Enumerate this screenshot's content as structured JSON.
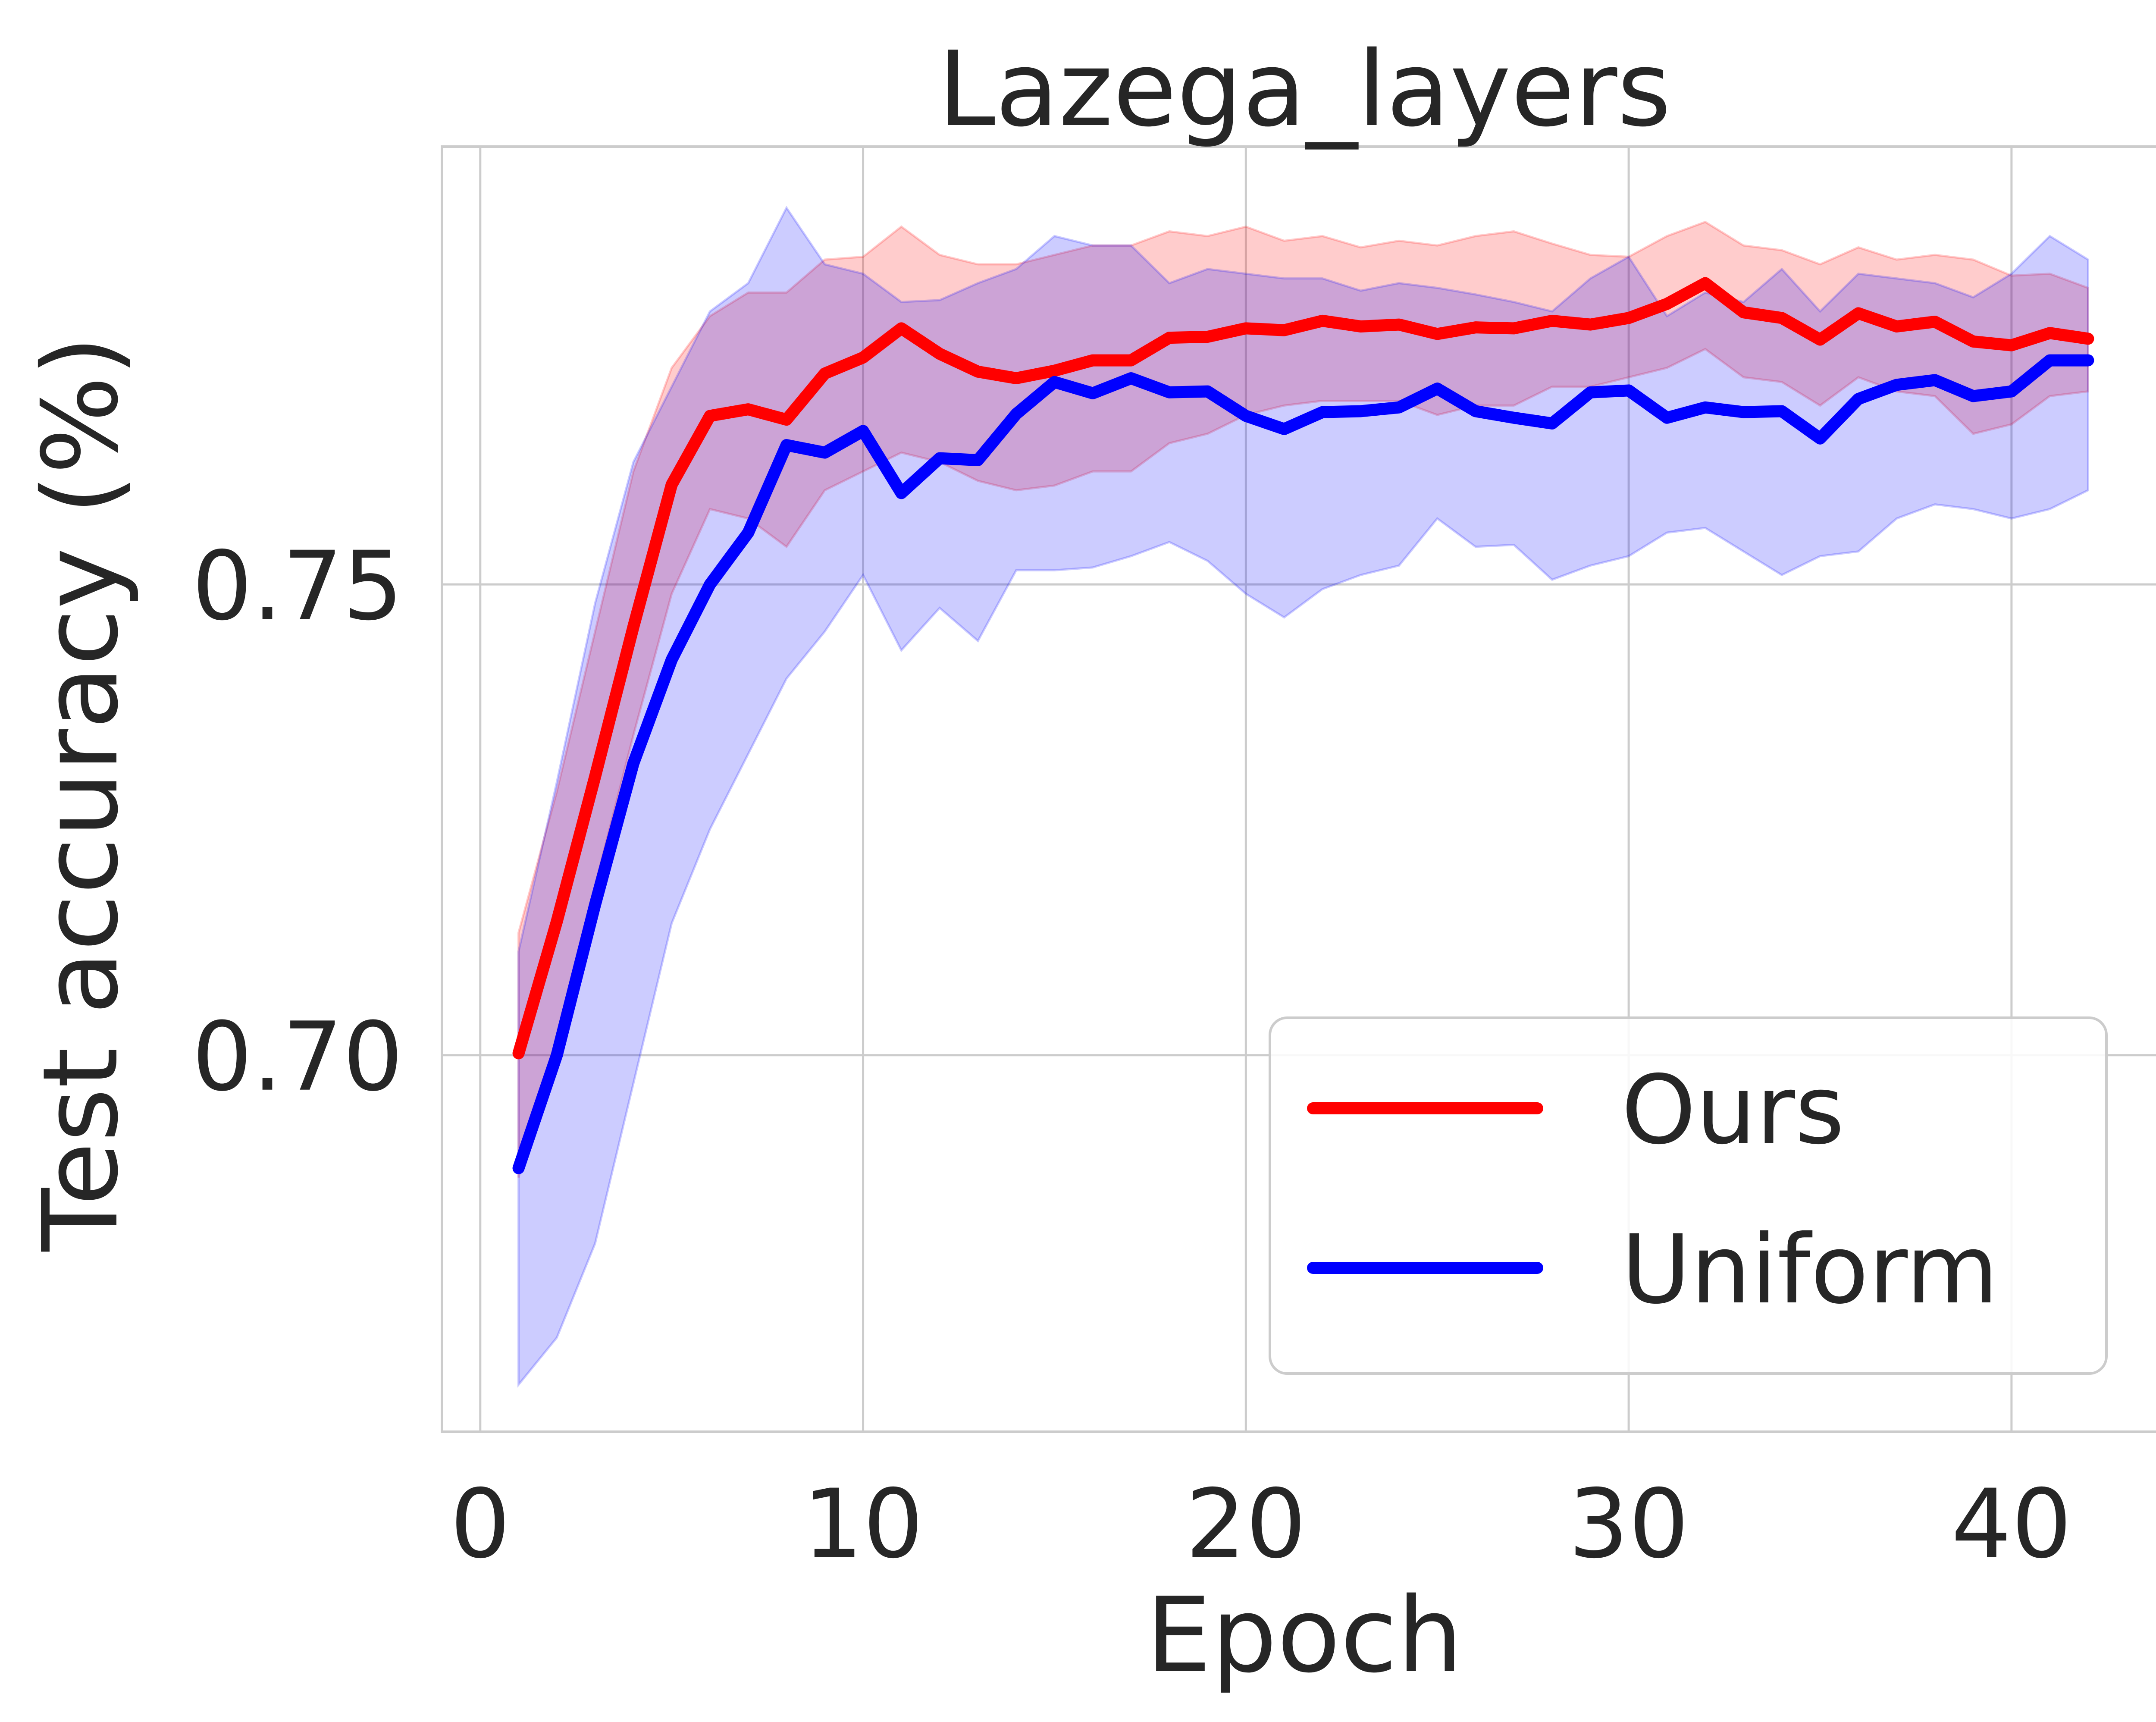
{
  "chart_data": {
    "type": "line",
    "title": "Lazega_layers",
    "xlabel": "Epoch",
    "ylabel": "Test accuracy (%)",
    "xlim": [
      -1,
      44
    ],
    "ylim": [
      0.66,
      0.7965
    ],
    "xticks": [
      0,
      10,
      20,
      30,
      40
    ],
    "xtick_labels": [
      "0",
      "10",
      "20",
      "30",
      "40"
    ],
    "yticks": [
      0.7,
      0.75
    ],
    "ytick_labels": [
      "0.70",
      "0.75"
    ],
    "grid": true,
    "legend_position": "lower-right",
    "x": [
      1,
      2,
      3,
      4,
      5,
      6,
      7,
      8,
      9,
      10,
      11,
      12,
      13,
      14,
      15,
      16,
      17,
      18,
      19,
      20,
      21,
      22,
      23,
      24,
      25,
      26,
      27,
      28,
      29,
      30,
      31,
      32,
      33,
      34,
      35,
      36,
      37,
      38,
      39,
      40,
      41,
      42
    ],
    "series": [
      {
        "name": "Ours",
        "color": "#ff0000",
        "band_color": "#ff0000",
        "values": [
          0.7002,
          0.7142,
          0.7296,
          0.7455,
          0.7606,
          0.7679,
          0.7686,
          0.7675,
          0.7724,
          0.7741,
          0.7772,
          0.7745,
          0.7726,
          0.7719,
          0.7727,
          0.7738,
          0.7738,
          0.7762,
          0.7763,
          0.7772,
          0.777,
          0.778,
          0.7774,
          0.7776,
          0.7766,
          0.7773,
          0.7772,
          0.778,
          0.7776,
          0.7783,
          0.7798,
          0.782,
          0.7789,
          0.7783,
          0.776,
          0.7788,
          0.7774,
          0.7779,
          0.7758,
          0.7754,
          0.7767,
          0.7761
        ],
        "lower": [
          0.687,
          0.702,
          0.718,
          0.734,
          0.749,
          0.758,
          0.757,
          0.754,
          0.76,
          0.762,
          0.764,
          0.763,
          0.761,
          0.76,
          0.7605,
          0.762,
          0.762,
          0.765,
          0.766,
          0.768,
          0.769,
          0.7695,
          0.7695,
          0.7695,
          0.768,
          0.769,
          0.769,
          0.771,
          0.771,
          0.772,
          0.773,
          0.775,
          0.772,
          0.7715,
          0.769,
          0.772,
          0.7705,
          0.77,
          0.766,
          0.767,
          0.77,
          0.7705
        ],
        "upper": [
          0.713,
          0.728,
          0.745,
          0.762,
          0.773,
          0.7785,
          0.781,
          0.781,
          0.7845,
          0.7848,
          0.788,
          0.785,
          0.784,
          0.784,
          0.785,
          0.786,
          0.786,
          0.7875,
          0.787,
          0.788,
          0.7865,
          0.787,
          0.7858,
          0.7865,
          0.786,
          0.787,
          0.7875,
          0.7862,
          0.785,
          0.7848,
          0.787,
          0.7885,
          0.786,
          0.7855,
          0.784,
          0.7858,
          0.7845,
          0.785,
          0.7845,
          0.7828,
          0.783,
          0.7815
        ]
      },
      {
        "name": "Uniform",
        "color": "#0000ff",
        "band_color": "#0000ff",
        "values": [
          0.688,
          0.7,
          0.716,
          0.731,
          0.742,
          0.75,
          0.7555,
          0.7648,
          0.764,
          0.7663,
          0.7597,
          0.7634,
          0.7632,
          0.7681,
          0.7715,
          0.7703,
          0.7719,
          0.7704,
          0.7705,
          0.7679,
          0.7665,
          0.7683,
          0.7684,
          0.7688,
          0.7708,
          0.7684,
          0.7677,
          0.7671,
          0.7704,
          0.7706,
          0.7677,
          0.7688,
          0.7683,
          0.7684,
          0.7655,
          0.7697,
          0.7712,
          0.7717,
          0.77,
          0.7705,
          0.7738,
          0.7738
        ],
        "lower": [
          0.665,
          0.67,
          0.68,
          0.697,
          0.714,
          0.724,
          0.732,
          0.74,
          0.745,
          0.751,
          0.743,
          0.7475,
          0.744,
          0.7515,
          0.7515,
          0.7518,
          0.753,
          0.7545,
          0.7525,
          0.749,
          0.7465,
          0.7495,
          0.751,
          0.752,
          0.757,
          0.754,
          0.7542,
          0.7505,
          0.752,
          0.753,
          0.7555,
          0.756,
          0.7535,
          0.751,
          0.753,
          0.7535,
          0.757,
          0.7585,
          0.758,
          0.757,
          0.758,
          0.76
        ],
        "upper": [
          0.711,
          0.729,
          0.748,
          0.763,
          0.771,
          0.779,
          0.782,
          0.79,
          0.784,
          0.783,
          0.78,
          0.7802,
          0.782,
          0.7835,
          0.787,
          0.786,
          0.786,
          0.782,
          0.7835,
          0.783,
          0.7825,
          0.7825,
          0.7812,
          0.782,
          0.7815,
          0.7808,
          0.78,
          0.779,
          0.7825,
          0.7848,
          0.7785,
          0.781,
          0.78,
          0.7835,
          0.779,
          0.783,
          0.7825,
          0.782,
          0.7805,
          0.783,
          0.787,
          0.7845
        ]
      }
    ]
  }
}
